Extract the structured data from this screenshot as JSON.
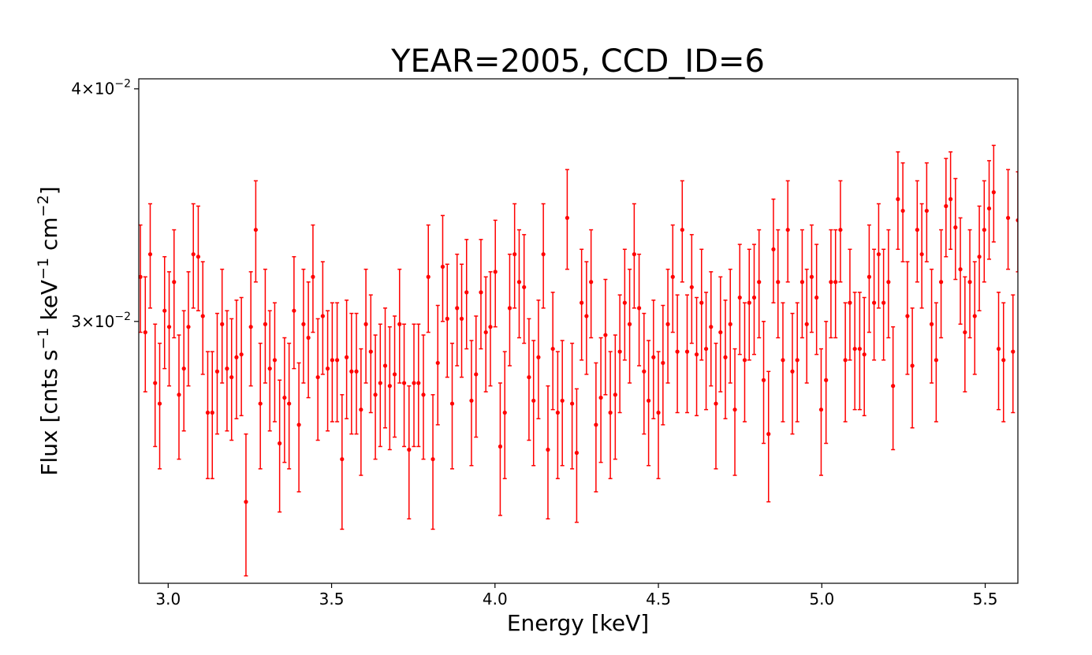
{
  "chart_data": {
    "type": "scatter",
    "title": "YEAR=2005, CCD_ID=6",
    "xlabel": "Energy [keV]",
    "ylabel_parts": [
      "Flux [cnts s",
      "−1",
      " keV",
      "−1",
      " cm",
      "−2",
      "]"
    ],
    "xlim": [
      2.91,
      5.6
    ],
    "ylim": [
      0.0217,
      0.0405
    ],
    "yscale": "log",
    "xticks": [
      {
        "value": 3.0,
        "label": "3.0"
      },
      {
        "value": 3.5,
        "label": "3.5"
      },
      {
        "value": 4.0,
        "label": "4.0"
      },
      {
        "value": 4.5,
        "label": "4.5"
      },
      {
        "value": 5.0,
        "label": "5.0"
      },
      {
        "value": 5.5,
        "label": "5.5"
      }
    ],
    "yticks": [
      {
        "value": 0.03,
        "mantissa": "3",
        "base": "10",
        "exponent": "−2"
      },
      {
        "value": 0.04,
        "mantissa": "4",
        "base": "10",
        "exponent": "−2"
      }
    ],
    "series": [
      {
        "name": "YEAR=2005, CCD_ID=6",
        "color": "#ff0000",
        "x": [
          2.915,
          2.93,
          2.945,
          2.96,
          2.974,
          2.989,
          3.003,
          3.018,
          3.033,
          3.048,
          3.062,
          3.077,
          3.092,
          3.106,
          3.121,
          3.135,
          3.15,
          3.165,
          3.18,
          3.194,
          3.209,
          3.224,
          3.238,
          3.253,
          3.268,
          3.282,
          3.297,
          3.311,
          3.326,
          3.341,
          3.356,
          3.37,
          3.385,
          3.4,
          3.414,
          3.429,
          3.443,
          3.458,
          3.473,
          3.488,
          3.502,
          3.517,
          3.532,
          3.546,
          3.561,
          3.576,
          3.59,
          3.605,
          3.62,
          3.634,
          3.649,
          3.664,
          3.678,
          3.693,
          3.708,
          3.722,
          3.737,
          3.752,
          3.766,
          3.781,
          3.796,
          3.81,
          3.825,
          3.84,
          3.854,
          3.869,
          3.884,
          3.898,
          3.913,
          3.928,
          3.942,
          3.957,
          3.972,
          3.986,
          4.001,
          4.016,
          4.03,
          4.045,
          4.06,
          4.074,
          4.089,
          4.104,
          4.118,
          4.133,
          4.148,
          4.162,
          4.177,
          4.192,
          4.206,
          4.221,
          4.236,
          4.25,
          4.265,
          4.28,
          4.294,
          4.309,
          4.324,
          4.338,
          4.353,
          4.368,
          4.382,
          4.397,
          4.412,
          4.426,
          4.441,
          4.456,
          4.47,
          4.485,
          4.5,
          4.514,
          4.529,
          4.544,
          4.558,
          4.573,
          4.588,
          4.602,
          4.617,
          4.632,
          4.646,
          4.661,
          4.676,
          4.69,
          4.705,
          4.72,
          4.734,
          4.749,
          4.764,
          4.778,
          4.793,
          4.808,
          4.822,
          4.837,
          4.852,
          4.866,
          4.881,
          4.896,
          4.91,
          4.925,
          4.94,
          4.954,
          4.969,
          4.984,
          4.998,
          5.013,
          5.028,
          5.042,
          5.057,
          5.072,
          5.086,
          5.101,
          5.116,
          5.13,
          5.145,
          5.16,
          5.174,
          5.189,
          5.204,
          5.218,
          5.233,
          5.248,
          5.262,
          5.277,
          5.292,
          5.306,
          5.321,
          5.336,
          5.35,
          5.365,
          5.38,
          5.394,
          5.409,
          5.424,
          5.438,
          5.453,
          5.468,
          5.482,
          5.497,
          5.512,
          5.526,
          5.541,
          5.556,
          5.57,
          5.585,
          5.6
        ],
        "y": [
          0.0317,
          0.0296,
          0.0326,
          0.0278,
          0.0271,
          0.0304,
          0.0298,
          0.0315,
          0.0274,
          0.0283,
          0.0298,
          0.0326,
          0.0325,
          0.0302,
          0.0268,
          0.0268,
          0.0282,
          0.0299,
          0.0283,
          0.028,
          0.0287,
          0.0288,
          0.024,
          0.0298,
          0.0336,
          0.0271,
          0.0299,
          0.0283,
          0.0286,
          0.0258,
          0.0273,
          0.0271,
          0.0304,
          0.0264,
          0.0299,
          0.0294,
          0.0317,
          0.028,
          0.0302,
          0.0283,
          0.0286,
          0.0286,
          0.0253,
          0.0287,
          0.0282,
          0.0282,
          0.0269,
          0.0299,
          0.0289,
          0.0274,
          0.0278,
          0.0284,
          0.0277,
          0.0281,
          0.0299,
          0.0278,
          0.0256,
          0.0278,
          0.0278,
          0.0274,
          0.0317,
          0.0253,
          0.0285,
          0.0321,
          0.0301,
          0.0271,
          0.0305,
          0.0301,
          0.0311,
          0.0272,
          0.0281,
          0.0311,
          0.0296,
          0.0298,
          0.0319,
          0.0257,
          0.0268,
          0.0305,
          0.0326,
          0.0315,
          0.0313,
          0.028,
          0.0272,
          0.0287,
          0.0326,
          0.0256,
          0.029,
          0.0268,
          0.0272,
          0.0341,
          0.0271,
          0.0255,
          0.0307,
          0.0302,
          0.0315,
          0.0264,
          0.0273,
          0.0295,
          0.0268,
          0.0274,
          0.0289,
          0.0307,
          0.0299,
          0.0326,
          0.0305,
          0.0282,
          0.0272,
          0.0287,
          0.0268,
          0.0285,
          0.0299,
          0.0317,
          0.0289,
          0.0336,
          0.0289,
          0.0313,
          0.0288,
          0.0307,
          0.029,
          0.0298,
          0.0271,
          0.0296,
          0.0287,
          0.0299,
          0.0269,
          0.0309,
          0.0286,
          0.0307,
          0.0309,
          0.0315,
          0.0279,
          0.0261,
          0.0328,
          0.0315,
          0.0286,
          0.0336,
          0.0282,
          0.0286,
          0.0315,
          0.0299,
          0.0317,
          0.0309,
          0.0269,
          0.0279,
          0.0315,
          0.0315,
          0.0336,
          0.0286,
          0.0307,
          0.029,
          0.029,
          0.0288,
          0.0317,
          0.0307,
          0.0326,
          0.0307,
          0.0315,
          0.0277,
          0.0349,
          0.0344,
          0.0302,
          0.0284,
          0.0336,
          0.0326,
          0.0344,
          0.0299,
          0.0286,
          0.0315,
          0.0346,
          0.0349,
          0.0337,
          0.032,
          0.0296,
          0.0315,
          0.0302,
          0.0325,
          0.0336,
          0.0345,
          0.0352,
          0.029,
          0.0286,
          0.0341,
          0.0289,
          0.034
        ],
        "yerr": 0.0021
      }
    ]
  }
}
